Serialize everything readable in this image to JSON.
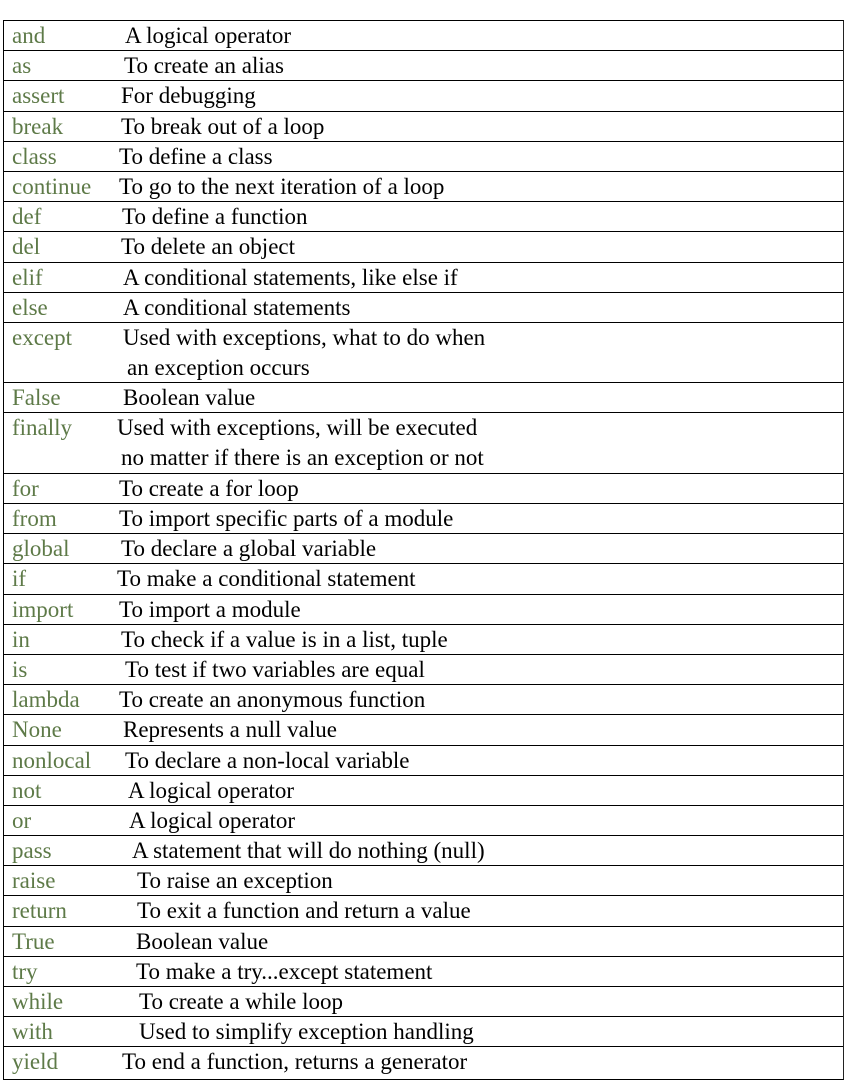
{
  "rows": [
    {
      "keyword": "and",
      "desc": [
        "A logical operator"
      ]
    },
    {
      "keyword": "as",
      "desc": [
        "To create an alias"
      ]
    },
    {
      "keyword": "assert",
      "desc": [
        "For debugging"
      ]
    },
    {
      "keyword": "break",
      "desc": [
        "To break out of a loop"
      ]
    },
    {
      "keyword": "class",
      "desc": [
        "To define a class"
      ]
    },
    {
      "keyword": "continue",
      "desc": [
        "To go to the next iteration of a loop"
      ]
    },
    {
      "keyword": "def",
      "desc": [
        "To define a function"
      ]
    },
    {
      "keyword": "del",
      "desc": [
        "To delete an object"
      ]
    },
    {
      "keyword": "elif",
      "desc": [
        "A conditional statements, like else if"
      ]
    },
    {
      "keyword": "else",
      "desc": [
        "A conditional statements"
      ]
    },
    {
      "keyword": "except",
      "desc": [
        "Used with exceptions, what to do when",
        "an exception occurs"
      ]
    },
    {
      "keyword": "False",
      "desc": [
        "Boolean value"
      ]
    },
    {
      "keyword": "finally",
      "desc": [
        "Used with exceptions, will be executed",
        "no matter if there is an exception or not"
      ]
    },
    {
      "keyword": "for",
      "desc": [
        "To create a for loop"
      ]
    },
    {
      "keyword": "from",
      "desc": [
        "To import specific parts of a module"
      ]
    },
    {
      "keyword": "global",
      "desc": [
        "To declare a global variable"
      ]
    },
    {
      "keyword": "if",
      "desc": [
        "To make a conditional statement"
      ]
    },
    {
      "keyword": "import",
      "desc": [
        "To import a module"
      ]
    },
    {
      "keyword": "in",
      "desc": [
        "To check if a value is in a list, tuple"
      ]
    },
    {
      "keyword": "is",
      "desc": [
        "To test if two variables are equal"
      ]
    },
    {
      "keyword": "lambda",
      "desc": [
        "To create an anonymous function"
      ]
    },
    {
      "keyword": "None",
      "desc": [
        "Represents a null value"
      ]
    },
    {
      "keyword": "nonlocal",
      "desc": [
        "To declare a non-local variable"
      ]
    },
    {
      "keyword": "not",
      "desc": [
        "A logical operator"
      ]
    },
    {
      "keyword": "or",
      "desc": [
        "A logical operator"
      ]
    },
    {
      "keyword": "pass",
      "desc": [
        "A statement that will do nothing (null)"
      ]
    },
    {
      "keyword": "raise",
      "desc": [
        "To raise an exception"
      ]
    },
    {
      "keyword": "return",
      "desc": [
        "To exit a function and return a value"
      ]
    },
    {
      "keyword": "True",
      "desc": [
        "Boolean value"
      ]
    },
    {
      "keyword": "try",
      "desc": [
        "To make a try...except statement"
      ]
    },
    {
      "keyword": "while",
      "desc": [
        "To create a while loop"
      ]
    },
    {
      "keyword": "with",
      "desc": [
        "Used to simplify exception handling"
      ]
    },
    {
      "keyword": "yield",
      "desc": [
        "To end a function, returns a generator"
      ]
    }
  ],
  "colors": {
    "keyword": "#5e7a48",
    "text": "#000000",
    "border": "#000000"
  }
}
